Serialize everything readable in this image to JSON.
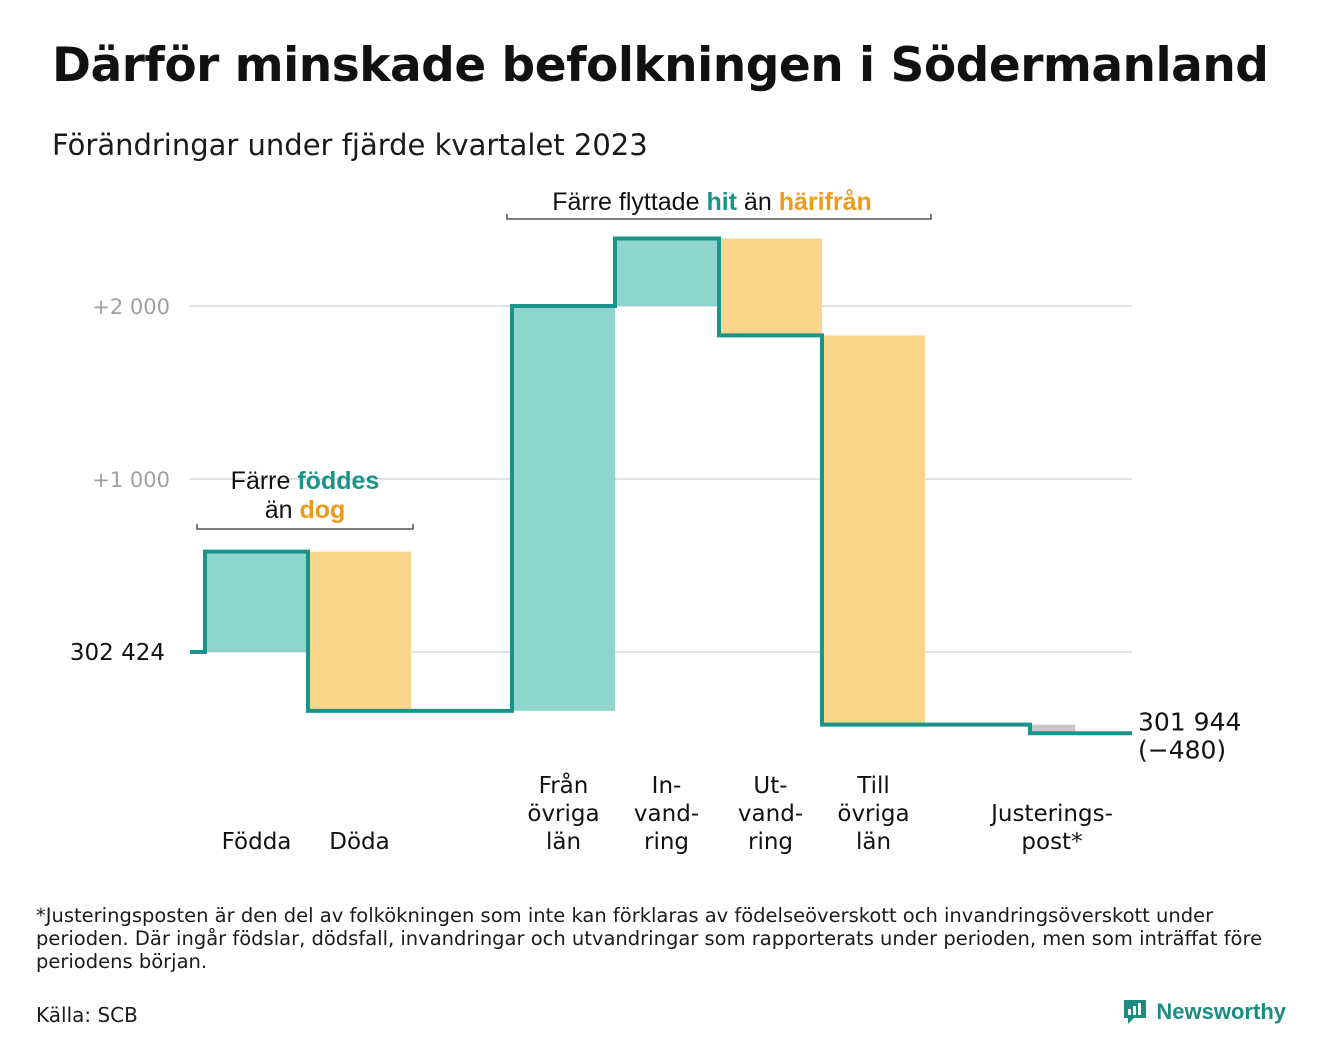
{
  "title": "Därför minskade befolkningen i Södermanland",
  "subtitle": "Förändringar under fjärde kvartalet 2023",
  "footnote": "*Justeringsposten är den del av folkökningen som inte kan förklaras av födelseöverskott och invandringsöverskott under perioden. Där ingår födslar, dödsfall, invandringar och utvandringar som rapporterats under perioden, men som inträffat före periodens början.",
  "source": "Källa: SCB",
  "brand": "Newsworthy",
  "colors": {
    "increase": "#8dd5cd",
    "decrease": "#fad58c",
    "adjustment": "#c8c8c8",
    "line": "#1a9488",
    "teal_text": "#1a9488",
    "orange_text": "#f09a1a",
    "grid": "#e2e2e2",
    "tick": "#a0a0a0"
  },
  "chart_data": {
    "type": "waterfall",
    "start": {
      "value": 302424,
      "label": "302 424"
    },
    "end": {
      "value": 301944,
      "label": "301 944",
      "change_label": "(−480)"
    },
    "y_ticks": [
      {
        "offset": 1000,
        "label": "+1 000"
      },
      {
        "offset": 2000,
        "label": "+2 000"
      }
    ],
    "ylim_offset": [
      -480,
      2380
    ],
    "steps": [
      {
        "label_lines": [
          "Födda"
        ],
        "change": 580,
        "kind": "increase"
      },
      {
        "label_lines": [
          "Döda"
        ],
        "change": -920,
        "kind": "decrease"
      },
      {
        "label_lines": [
          "Från",
          "övriga",
          "län"
        ],
        "change": 2340,
        "kind": "increase"
      },
      {
        "label_lines": [
          "In-",
          "vand-",
          "ring"
        ],
        "change": 390,
        "kind": "increase"
      },
      {
        "label_lines": [
          "Ut-",
          "vand-",
          "ring"
        ],
        "change": -560,
        "kind": "decrease"
      },
      {
        "label_lines": [
          "Till",
          "övriga",
          "län"
        ],
        "change": -2250,
        "kind": "decrease"
      },
      {
        "label_lines": [
          "Justerings-",
          "post*"
        ],
        "change": -50,
        "kind": "adjustment"
      }
    ],
    "annotations": [
      {
        "lines": [
          [
            {
              "text": "Färre ",
              "color": "dark"
            },
            {
              "text": "föddes",
              "color": "teal"
            }
          ],
          [
            {
              "text": "än ",
              "color": "dark"
            },
            {
              "text": "dog",
              "color": "orange"
            }
          ]
        ],
        "spans_steps": [
          0,
          1
        ]
      },
      {
        "lines": [
          [
            {
              "text": "Färre flyttade ",
              "color": "dark"
            },
            {
              "text": "hit",
              "color": "teal"
            },
            {
              "text": " än ",
              "color": "dark"
            },
            {
              "text": "härifrån",
              "color": "orange"
            }
          ]
        ],
        "spans_steps": [
          2,
          5
        ]
      }
    ]
  }
}
